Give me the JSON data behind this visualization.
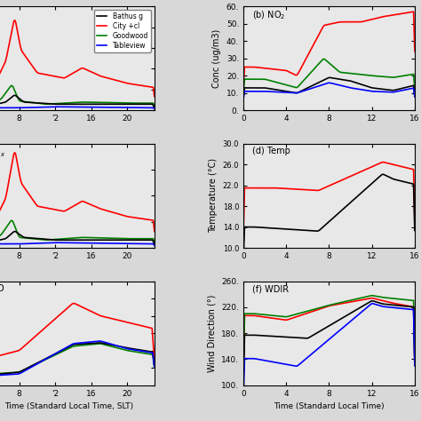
{
  "legend_labels": [
    "Bathus g",
    "City +cl",
    "Goodwood",
    "Tableview"
  ],
  "colors": [
    "black",
    "red",
    "green",
    "blue"
  ],
  "bg_color": "#e8e8e8",
  "lw": 1.2
}
